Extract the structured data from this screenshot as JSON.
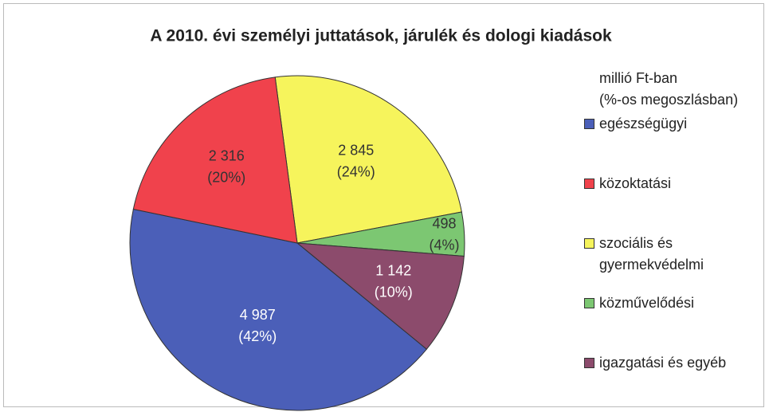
{
  "chart_data": {
    "type": "pie",
    "title": "A 2010. évi személyi juttatások, járulék és dologi kiadások",
    "legend_title": [
      "millió Ft-ban",
      "(%-os megoszlásban)"
    ],
    "series": [
      {
        "name": "egészségügyi",
        "color": "#4b5fb8",
        "value": 4987,
        "value_label": "4 987",
        "percent": 42,
        "percent_label": "(42%)"
      },
      {
        "name": "közoktatási",
        "color": "#f0424c",
        "value": 2316,
        "value_label": "2 316",
        "percent": 20,
        "percent_label": "(20%)"
      },
      {
        "name": "szociális és gyermekvédelmi",
        "color": "#f6f45c",
        "value": 2845,
        "value_label": "2 845",
        "percent": 24,
        "percent_label": "(24%)"
      },
      {
        "name": "közművelődési",
        "color": "#7cc772",
        "value": 498,
        "value_label": "498",
        "percent": 4,
        "percent_label": "(4%)"
      },
      {
        "name": "igazgatási és egyéb",
        "color": "#8c4b6c",
        "value": 1142,
        "value_label": "1 142",
        "percent": 10,
        "percent_label": "(10%)"
      }
    ],
    "legend": "right"
  }
}
